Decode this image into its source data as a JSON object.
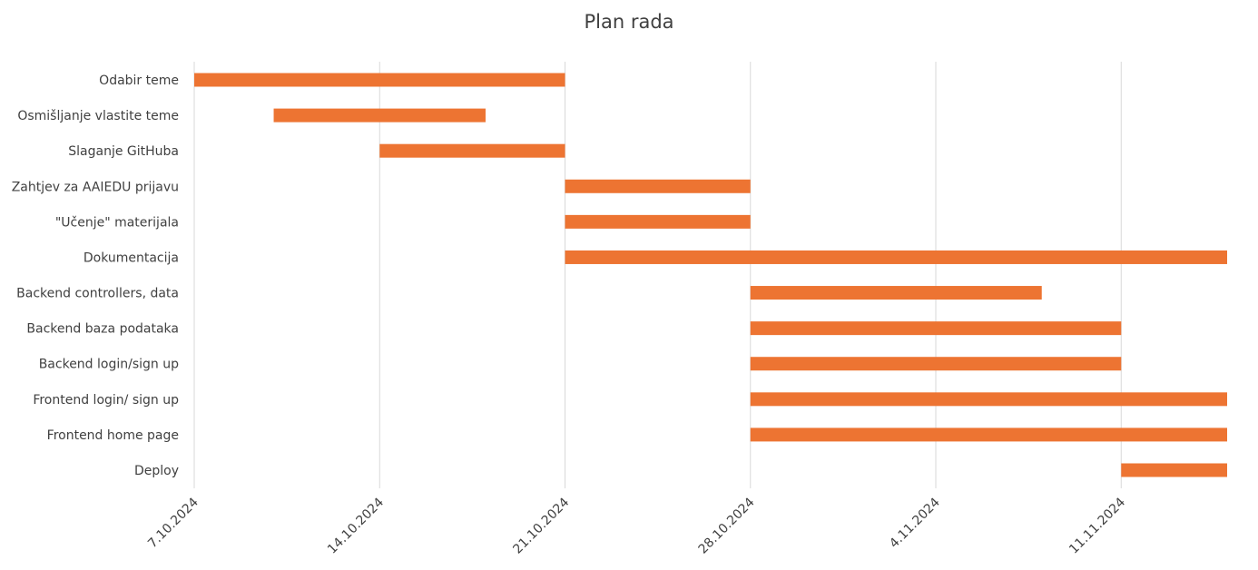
{
  "chart_data": {
    "type": "bar",
    "subtype": "gantt",
    "title": "Plan rada",
    "xlabel": "",
    "ylabel": "",
    "x_axis_type": "date",
    "xlim": [
      "2024-10-07",
      "2024-11-15"
    ],
    "x_ticks": [
      "7.10.2024",
      "14.10.2024",
      "21.10.2024",
      "28.10.2024",
      "4.11.2024",
      "11.11.2024"
    ],
    "x_tick_dates": [
      "2024-10-07",
      "2024-10-14",
      "2024-10-21",
      "2024-10-28",
      "2024-11-04",
      "2024-11-11"
    ],
    "grid": "vertical",
    "legend": "none",
    "bar_color": "#ED7432",
    "categories": [
      "Odabir teme",
      "Osmišljanje vlastite teme",
      "Slaganje GitHuba",
      "Zahtjev za AAIEDU prijavu",
      "\"Učenje\" materijala",
      "Dokumentacija",
      "Backend controllers, data",
      "Backend baza podataka",
      "Backend login/sign up",
      "Frontend login/ sign up",
      "Frontend home page",
      "Deploy"
    ],
    "tasks": [
      {
        "start": "2024-10-07",
        "end": "2024-10-21"
      },
      {
        "start": "2024-10-10",
        "end": "2024-10-18"
      },
      {
        "start": "2024-10-14",
        "end": "2024-10-21"
      },
      {
        "start": "2024-10-21",
        "end": "2024-10-28"
      },
      {
        "start": "2024-10-21",
        "end": "2024-10-28"
      },
      {
        "start": "2024-10-21",
        "end": "2024-11-15"
      },
      {
        "start": "2024-10-28",
        "end": "2024-11-08"
      },
      {
        "start": "2024-10-28",
        "end": "2024-11-11"
      },
      {
        "start": "2024-10-28",
        "end": "2024-11-11"
      },
      {
        "start": "2024-10-28",
        "end": "2024-11-15"
      },
      {
        "start": "2024-10-28",
        "end": "2024-11-15"
      },
      {
        "start": "2024-11-11",
        "end": "2024-11-15"
      }
    ]
  }
}
